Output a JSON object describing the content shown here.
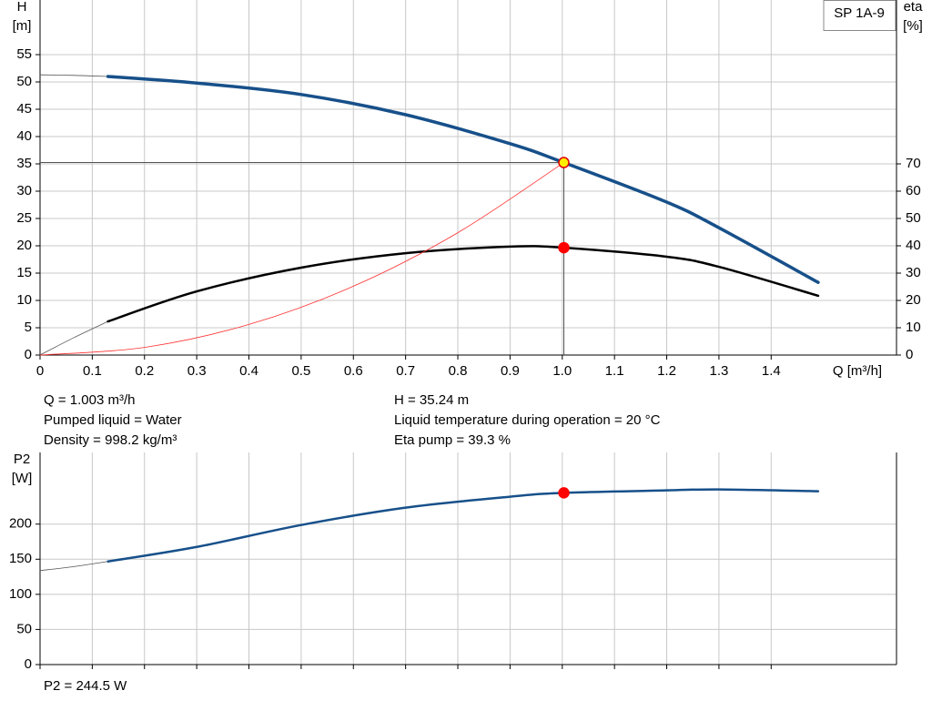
{
  "chart_data": [
    {
      "type": "line",
      "title": "SP 1A-9",
      "xlabel": "Q [m³/h]",
      "ylabel": "H",
      "ylabel_unit": "[m]",
      "y2label": "eta",
      "y2label_unit": "[%]",
      "xlim": [
        0,
        1.64
      ],
      "xticks": [
        0,
        0.1,
        0.2,
        0.3,
        0.4,
        0.5,
        0.6,
        0.7,
        0.8,
        0.9,
        {
          "value": 1,
          "label": "1.0"
        },
        1.1,
        1.2,
        1.3,
        1.4
      ],
      "ylim": [
        0,
        65
      ],
      "yticks": [
        0,
        5,
        10,
        15,
        20,
        25,
        30,
        35,
        40,
        45,
        50,
        55
      ],
      "y2lim": [
        0,
        130
      ],
      "y2ticks": [
        0,
        10,
        20,
        30,
        40,
        50,
        60,
        70
      ],
      "grid": true,
      "series": [
        {
          "color": "#555555",
          "line_width": 0.8,
          "x": [
            0,
            0.065,
            0.13
          ],
          "values": [
            51.3,
            51.2,
            51.0
          ]
        },
        {
          "color": "#17508a",
          "line_width": 3.5,
          "x": [
            0.13,
            0.3,
            0.5,
            0.7,
            0.9,
            1.003,
            1.2,
            1.3,
            1.49
          ],
          "values": [
            51.0,
            49.8,
            47.7,
            44.0,
            38.7,
            35.24,
            28.0,
            23.3,
            13.3
          ]
        },
        {
          "color": "#555555",
          "line_width": 0.8,
          "axis": "y2",
          "x": [
            0,
            0.065,
            0.13
          ],
          "values": [
            0,
            6.4,
            12.3
          ]
        },
        {
          "color": "#000000",
          "line_width": 2.5,
          "axis": "y2",
          "x": [
            0.13,
            0.3,
            0.5,
            0.7,
            0.9,
            1.003,
            1.2,
            1.3,
            1.49
          ],
          "values": [
            12.3,
            23.3,
            32.0,
            37.3,
            39.7,
            39.3,
            36.0,
            32.3,
            21.7
          ]
        },
        {
          "color": "#ff3030",
          "line_width": 0.8,
          "x": [
            0,
            0.2,
            0.4,
            0.6,
            0.8,
            1.003
          ],
          "values": [
            0,
            1.4,
            5.6,
            12.6,
            22.4,
            35.24
          ]
        }
      ],
      "points": [
        {
          "x": 1.003,
          "y": 35.24,
          "color": "#ffee00",
          "edge": "#e00000",
          "droplines": true
        },
        {
          "x": 1.003,
          "y": 39.3,
          "axis": "y2",
          "color": "#ff0000",
          "edge": "#ff0000"
        }
      ],
      "annotations": [
        "Q = 1.003 m³/h",
        "Pumped liquid = Water",
        "Density = 998.2 kg/m³",
        "H = 35.24 m",
        "Liquid temperature during operation = 20 °C",
        "Eta pump = 39.3 %"
      ]
    },
    {
      "type": "line",
      "ylabel": "P2",
      "ylabel_unit": "[W]",
      "xlim": [
        0,
        1.64
      ],
      "ylim": [
        0,
        302
      ],
      "yticks": [
        0,
        50,
        100,
        150,
        200
      ],
      "grid": true,
      "series": [
        {
          "color": "#555555",
          "line_width": 0.8,
          "x": [
            0,
            0.065,
            0.13
          ],
          "values": [
            133.8,
            139.5,
            146.8
          ]
        },
        {
          "color": "#17508a",
          "line_width": 2.5,
          "x": [
            0.13,
            0.3,
            0.5,
            0.7,
            0.9,
            1.003,
            1.2,
            1.3,
            1.49
          ],
          "values": [
            146.8,
            167.5,
            198.7,
            223.4,
            239.0,
            244.5,
            248.0,
            249.4,
            246.8
          ]
        }
      ],
      "points": [
        {
          "x": 1.003,
          "y": 244.5,
          "color": "#ff0000",
          "edge": "#ff0000"
        }
      ],
      "annotations": [
        "P2 = 244.5 W"
      ]
    }
  ]
}
